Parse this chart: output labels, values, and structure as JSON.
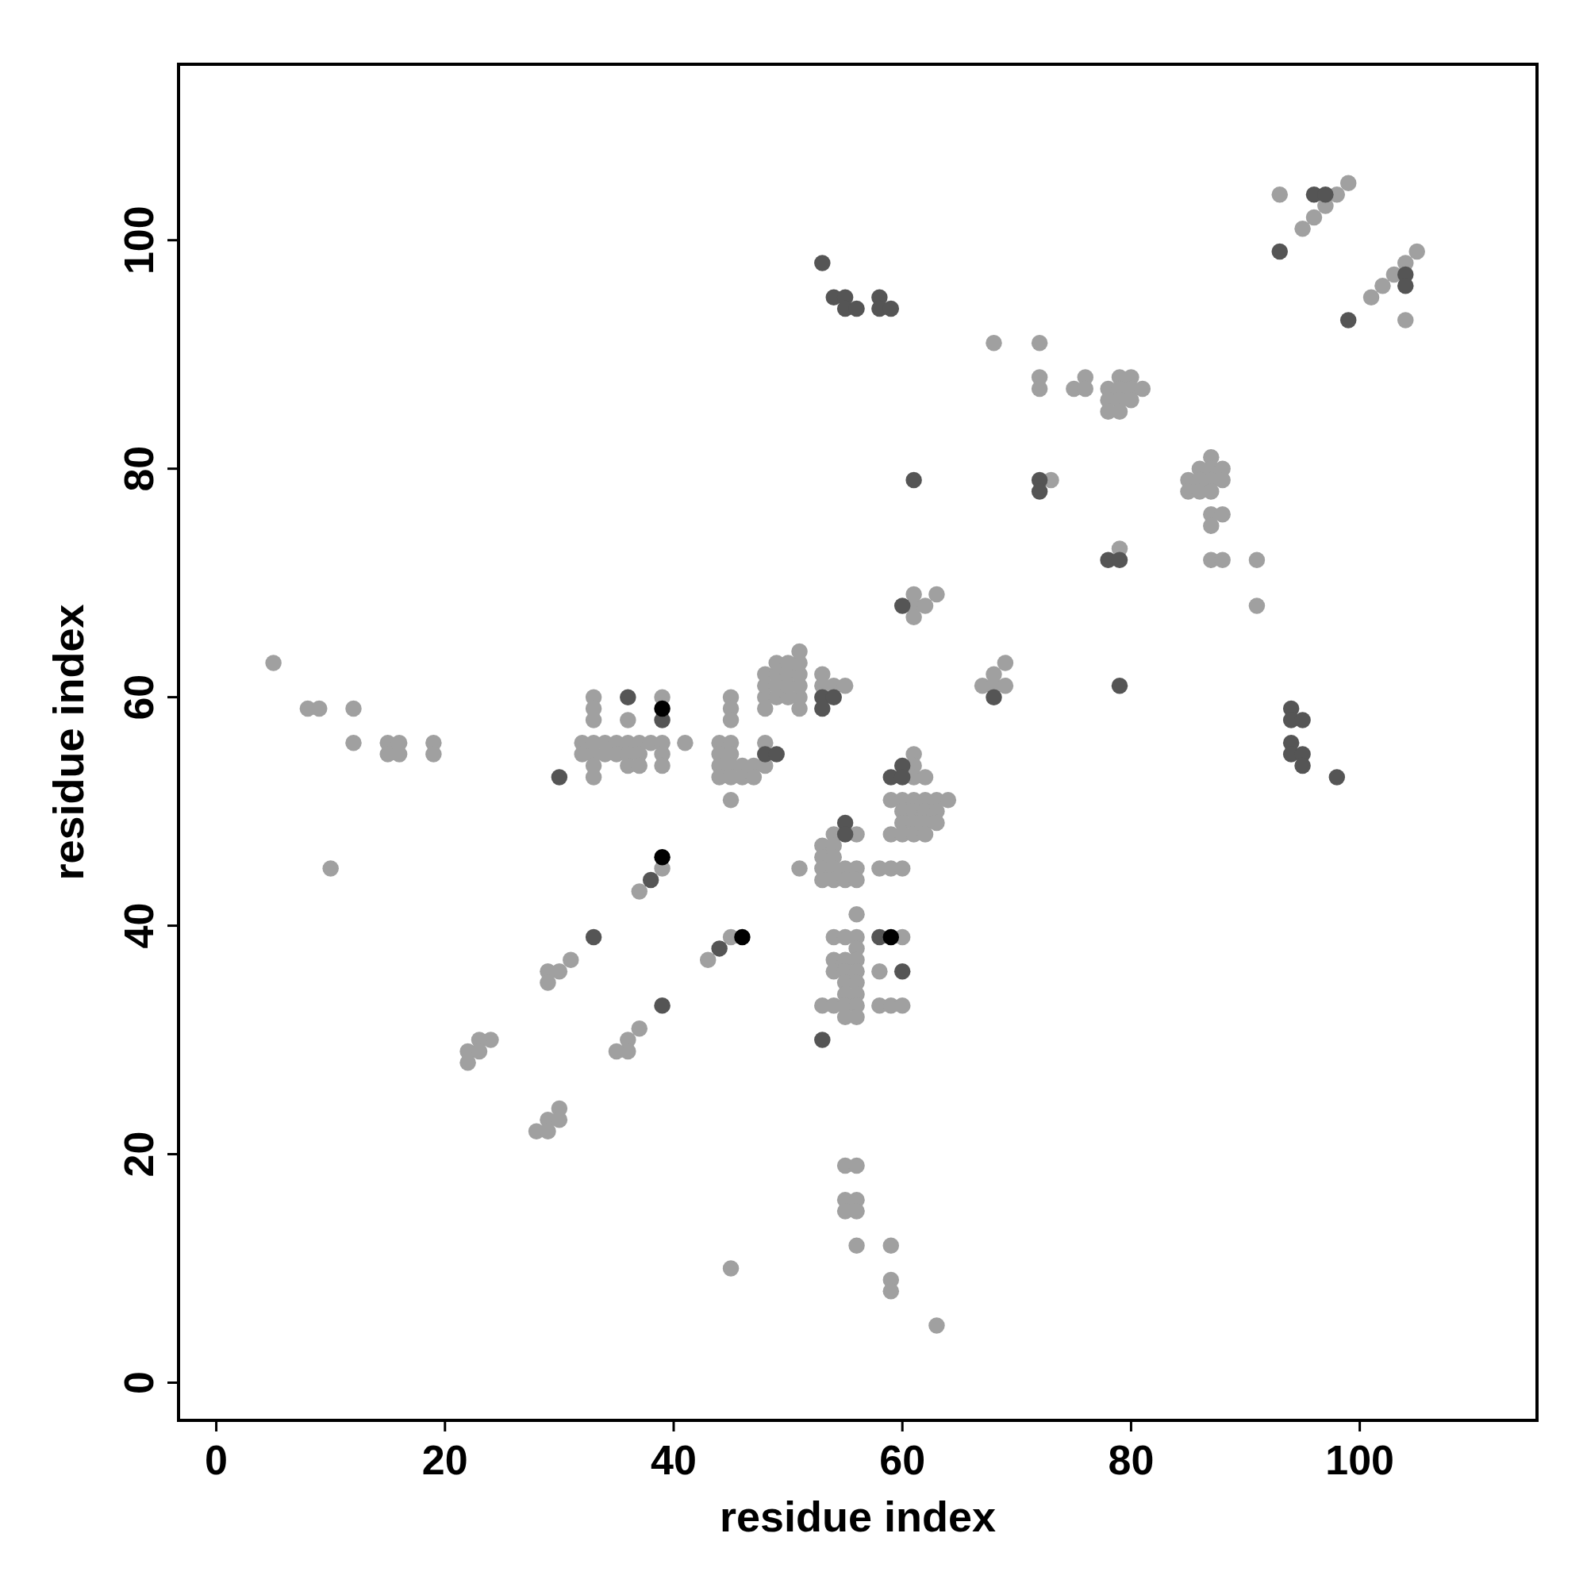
{
  "chart_data": {
    "type": "scatter",
    "xlabel": "residue index",
    "ylabel": "residue index",
    "xlim": [
      -3.3,
      115.5
    ],
    "ylim": [
      -3.3,
      115.4
    ],
    "xticks": [
      0,
      20,
      40,
      60,
      80,
      100
    ],
    "yticks": [
      0,
      20,
      40,
      60,
      80,
      100
    ],
    "marker": "circle",
    "grid": false,
    "series": [
      {
        "color": "#a0a0a0",
        "x": [
          5,
          8,
          9,
          12,
          12,
          15,
          16,
          15,
          16,
          19,
          19,
          10,
          33,
          33,
          33,
          36,
          39,
          32,
          33,
          34,
          35,
          36,
          37,
          38,
          39,
          41,
          32,
          33,
          34,
          35,
          36,
          37,
          39,
          33,
          36,
          37,
          39,
          33,
          45,
          45,
          45,
          44,
          45,
          48,
          44,
          45,
          44,
          45,
          46,
          47,
          48,
          44,
          45,
          46,
          47,
          45,
          48,
          48,
          48,
          48,
          49,
          49,
          49,
          49,
          50,
          50,
          50,
          50,
          51,
          51,
          51,
          51,
          51,
          51,
          53,
          53,
          54,
          55,
          67,
          68,
          69,
          68,
          69,
          61,
          61,
          61,
          62,
          59,
          60,
          61,
          62,
          63,
          64,
          60,
          61,
          62,
          63,
          60,
          61,
          62,
          63,
          59,
          60,
          61,
          62,
          54,
          56,
          53,
          53,
          53,
          53,
          54,
          54,
          54,
          54,
          55,
          56,
          55,
          56,
          51,
          58,
          59,
          60,
          56,
          54,
          55,
          56,
          60,
          56,
          54,
          55,
          56,
          54,
          55,
          56,
          58,
          55,
          56,
          55,
          56,
          53,
          54,
          55,
          56,
          58,
          59,
          60,
          55,
          56,
          39,
          37,
          31,
          30,
          29,
          29,
          45,
          43,
          37,
          36,
          36,
          35,
          24,
          23,
          22,
          23,
          22,
          30,
          29,
          30,
          28,
          29,
          55,
          56,
          55,
          56,
          55,
          56,
          56,
          59,
          59,
          59,
          63,
          45,
          93,
          98,
          99,
          97,
          96,
          95,
          105,
          104,
          103,
          102,
          101,
          104,
          68,
          72,
          72,
          72,
          76,
          75,
          76,
          79,
          80,
          78,
          79,
          80,
          81,
          78,
          79,
          80,
          78,
          79,
          73,
          87,
          86,
          87,
          88,
          85,
          86,
          87,
          88,
          85,
          86,
          87,
          87,
          88,
          87,
          79,
          87,
          88,
          91,
          91,
          61,
          63,
          61,
          62,
          61
        ],
        "values": [
          63,
          59,
          59,
          59,
          56,
          56,
          56,
          55,
          55,
          56,
          55,
          45,
          60,
          59,
          58,
          58,
          60,
          56,
          56,
          56,
          56,
          56,
          56,
          56,
          56,
          56,
          55,
          55,
          55,
          55,
          55,
          55,
          55,
          54,
          54,
          54,
          54,
          53,
          60,
          59,
          58,
          56,
          56,
          56,
          55,
          55,
          54,
          54,
          54,
          54,
          54,
          53,
          53,
          53,
          53,
          51,
          59,
          60,
          61,
          62,
          60,
          61,
          62,
          63,
          60,
          61,
          62,
          63,
          59,
          60,
          61,
          62,
          63,
          64,
          62,
          61,
          61,
          61,
          61,
          61,
          61,
          62,
          63,
          55,
          54,
          53,
          53,
          51,
          51,
          51,
          51,
          51,
          51,
          50,
          50,
          50,
          50,
          49,
          49,
          49,
          49,
          48,
          48,
          48,
          48,
          48,
          48,
          47,
          46,
          45,
          44,
          47,
          46,
          45,
          44,
          45,
          45,
          44,
          44,
          45,
          45,
          45,
          45,
          41,
          39,
          39,
          39,
          39,
          38,
          37,
          37,
          37,
          36,
          36,
          36,
          36,
          35,
          35,
          34,
          34,
          33,
          33,
          33,
          33,
          33,
          33,
          33,
          32,
          32,
          45,
          43,
          37,
          36,
          36,
          35,
          39,
          37,
          31,
          30,
          29,
          29,
          30,
          30,
          29,
          29,
          28,
          24,
          23,
          23,
          22,
          22,
          19,
          19,
          16,
          16,
          15,
          15,
          12,
          12,
          9,
          8,
          5,
          10,
          104,
          104,
          105,
          103,
          102,
          101,
          99,
          98,
          97,
          96,
          95,
          93,
          91,
          91,
          88,
          87,
          88,
          87,
          87,
          88,
          88,
          87,
          87,
          87,
          87,
          86,
          86,
          86,
          85,
          85,
          79,
          81,
          80,
          80,
          80,
          79,
          79,
          79,
          79,
          78,
          78,
          78,
          76,
          76,
          75,
          73,
          72,
          72,
          72,
          68,
          69,
          69,
          68,
          68,
          67
        ]
      },
      {
        "color": "#555555",
        "x": [
          30,
          36,
          39,
          48,
          49,
          53,
          53,
          54,
          60,
          59,
          60,
          55,
          55,
          58,
          60,
          53,
          38,
          33,
          44,
          39,
          96,
          97,
          93,
          104,
          104,
          99,
          72,
          72,
          78,
          79,
          68,
          79,
          94,
          94,
          95,
          94,
          94,
          95,
          95,
          98,
          53,
          54,
          55,
          55,
          56,
          58,
          58,
          59,
          61,
          60
        ],
        "values": [
          53,
          60,
          58,
          55,
          55,
          60,
          59,
          60,
          54,
          53,
          53,
          49,
          48,
          39,
          36,
          30,
          44,
          39,
          38,
          33,
          104,
          104,
          99,
          97,
          96,
          93,
          79,
          78,
          72,
          72,
          60,
          61,
          59,
          58,
          58,
          56,
          55,
          55,
          54,
          53,
          98,
          95,
          95,
          94,
          94,
          95,
          94,
          94,
          79,
          68
        ]
      },
      {
        "color": "#000000",
        "x": [
          39,
          39,
          46,
          59
        ],
        "values": [
          59,
          46,
          39,
          39
        ]
      }
    ]
  }
}
